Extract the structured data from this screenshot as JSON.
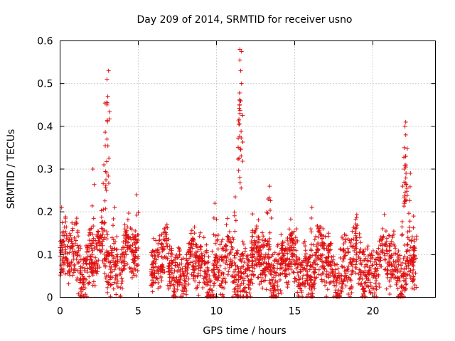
{
  "chart_data": {
    "type": "scatter",
    "title": "Day 209 of 2014, SRMTID for receiver usno",
    "xlabel": "GPS time / hours",
    "ylabel": "SRMTID / TECUs",
    "xlim": [
      0,
      24
    ],
    "ylim": [
      0,
      0.6
    ],
    "xticks": [
      0,
      5,
      10,
      15,
      20
    ],
    "xtick_labels": [
      "0",
      "5",
      "10",
      "15",
      "20"
    ],
    "yticks": [
      0,
      0.1,
      0.2,
      0.3,
      0.4,
      0.5,
      0.6
    ],
    "ytick_labels": [
      "0",
      "0.1",
      "0.2",
      "0.3",
      "0.4",
      "0.5",
      "0.6"
    ],
    "grid": true,
    "marker": "+",
    "series": [
      {
        "name": "SRMTID",
        "color": "#e01010",
        "segments": [
          {
            "x_start": 0.0,
            "x_end": 5.0,
            "base": 0.09,
            "spread": 0.07
          },
          {
            "x_start": 5.8,
            "x_end": 12.0,
            "base": 0.07,
            "spread": 0.07
          },
          {
            "x_start": 12.0,
            "x_end": 22.8,
            "base": 0.075,
            "spread": 0.07
          }
        ],
        "peaks": [
          {
            "x": 0.1,
            "y": 0.21
          },
          {
            "x": 2.1,
            "y": 0.3
          },
          {
            "x": 2.8,
            "y": 0.31
          },
          {
            "x": 3.0,
            "y": 0.37
          },
          {
            "x": 3.0,
            "y": 0.45
          },
          {
            "x": 3.05,
            "y": 0.47
          },
          {
            "x": 3.0,
            "y": 0.51
          },
          {
            "x": 3.1,
            "y": 0.53
          },
          {
            "x": 3.5,
            "y": 0.21
          },
          {
            "x": 4.9,
            "y": 0.24
          },
          {
            "x": 9.9,
            "y": 0.22
          },
          {
            "x": 11.2,
            "y": 0.235
          },
          {
            "x": 11.5,
            "y": 0.43
          },
          {
            "x": 11.5,
            "y": 0.46
          },
          {
            "x": 11.6,
            "y": 0.5
          },
          {
            "x": 11.55,
            "y": 0.53
          },
          {
            "x": 11.5,
            "y": 0.555
          },
          {
            "x": 11.6,
            "y": 0.575
          },
          {
            "x": 11.5,
            "y": 0.58
          },
          {
            "x": 12.3,
            "y": 0.195
          },
          {
            "x": 13.4,
            "y": 0.26
          },
          {
            "x": 13.3,
            "y": 0.23
          },
          {
            "x": 16.1,
            "y": 0.21
          },
          {
            "x": 21.9,
            "y": 0.26
          },
          {
            "x": 22.0,
            "y": 0.3
          },
          {
            "x": 22.1,
            "y": 0.33
          },
          {
            "x": 22.0,
            "y": 0.35
          },
          {
            "x": 22.1,
            "y": 0.38
          },
          {
            "x": 22.05,
            "y": 0.4
          },
          {
            "x": 22.1,
            "y": 0.41
          },
          {
            "x": 22.4,
            "y": 0.29
          },
          {
            "x": 22.6,
            "y": 0.19
          }
        ]
      }
    ]
  }
}
